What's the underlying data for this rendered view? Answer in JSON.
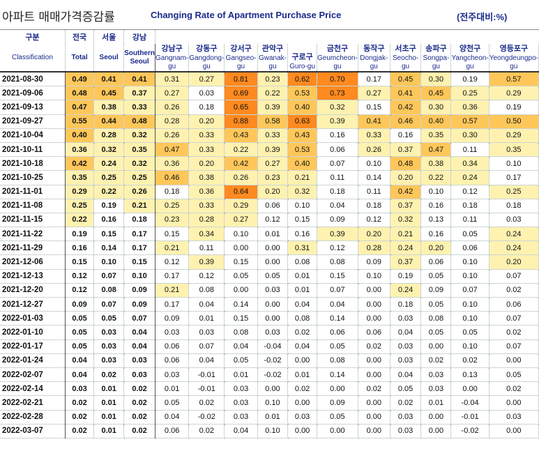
{
  "title_korean": "아파트 매매가격증감률",
  "title_english": "Changing Rate of Apartment Purchase Price",
  "unit": "(전주대비:%)",
  "header": {
    "classification_ko": "구분",
    "classification_en": "Classification",
    "columns": [
      {
        "ko": "전국",
        "en": "Total"
      },
      {
        "ko": "서울",
        "en": "Seoul"
      },
      {
        "ko": "강남",
        "en": "Southern Seoul"
      },
      {
        "ko": "강남구",
        "en": "Gangnam-gu"
      },
      {
        "ko": "강동구",
        "en": "Gangdong-gu"
      },
      {
        "ko": "강서구",
        "en": "Gangseo-gu"
      },
      {
        "ko": "관악구",
        "en": "Gwanak-gu"
      },
      {
        "ko": "구로구",
        "en": "Guro-gu"
      },
      {
        "ko": "금천구",
        "en": "Geumcheon-gu"
      },
      {
        "ko": "동작구",
        "en": "Dongjak-gu"
      },
      {
        "ko": "서초구",
        "en": "Seocho-gu"
      },
      {
        "ko": "송파구",
        "en": "Songpa-gu"
      },
      {
        "ko": "양천구",
        "en": "Yangcheon-gu"
      },
      {
        "ko": "영등포구",
        "en": "Yeongdeungpo-gu"
      }
    ]
  },
  "colors": {
    "header_text": "#1a2a8a",
    "heat_low": "#fff2b0",
    "heat_mid": "#ffc75a",
    "heat_high": "#ff8a1f"
  },
  "chart_data": {
    "type": "table",
    "title": "Changing Rate of Apartment Purchase Price",
    "unit": "(전주대비:%)",
    "columns": [
      "Total",
      "Seoul",
      "Southern Seoul",
      "Gangnam-gu",
      "Gangdong-gu",
      "Gangseo-gu",
      "Gwanak-gu",
      "Guro-gu",
      "Geumcheon-gu",
      "Dongjak-gu",
      "Seocho-gu",
      "Songpa-gu",
      "Yangcheon-gu",
      "Yeongdeungpo-gu"
    ],
    "rows": [
      {
        "date": "2021-08-30",
        "values": [
          "0.49",
          "0.41",
          "0.41",
          "0.31",
          "0.27",
          "0.81",
          "0.23",
          "0.62",
          "0.70",
          "0.17",
          "0.45",
          "0.30",
          "0.19",
          "0.57"
        ]
      },
      {
        "date": "2021-09-06",
        "values": [
          "0.48",
          "0.45",
          "0.37",
          "0.27",
          "0.03",
          "0.69",
          "0.22",
          "0.53",
          "0.73",
          "0.27",
          "0.41",
          "0.45",
          "0.25",
          "0.29"
        ]
      },
      {
        "date": "2021-09-13",
        "values": [
          "0.47",
          "0.38",
          "0.33",
          "0.26",
          "0.18",
          "0.65",
          "0.39",
          "0.40",
          "0.32",
          "0.15",
          "0.42",
          "0.30",
          "0.36",
          "0.19"
        ]
      },
      {
        "date": "2021-09-27",
        "values": [
          "0.55",
          "0.44",
          "0.48",
          "0.28",
          "0.20",
          "0.88",
          "0.58",
          "0.63",
          "0.39",
          "0.41",
          "0.46",
          "0.40",
          "0.57",
          "0.50"
        ]
      },
      {
        "date": "2021-10-04",
        "values": [
          "0.40",
          "0.28",
          "0.32",
          "0.26",
          "0.33",
          "0.43",
          "0.33",
          "0.43",
          "0.16",
          "0.33",
          "0.16",
          "0.35",
          "0.30",
          "0.29"
        ]
      },
      {
        "date": "2021-10-11",
        "values": [
          "0.36",
          "0.32",
          "0.35",
          "0.47",
          "0.33",
          "0.22",
          "0.39",
          "0.53",
          "0.06",
          "0.26",
          "0.37",
          "0.47",
          "0.11",
          "0.35"
        ]
      },
      {
        "date": "2021-10-18",
        "values": [
          "0.42",
          "0.24",
          "0.32",
          "0.36",
          "0.20",
          "0.42",
          "0.27",
          "0.40",
          "0.07",
          "0.10",
          "0.48",
          "0.38",
          "0.34",
          "0.10"
        ]
      },
      {
        "date": "2021-10-25",
        "values": [
          "0.35",
          "0.25",
          "0.25",
          "0.46",
          "0.38",
          "0.26",
          "0.23",
          "0.21",
          "0.11",
          "0.14",
          "0.20",
          "0.22",
          "0.24",
          "0.17"
        ]
      },
      {
        "date": "2021-11-01",
        "values": [
          "0.29",
          "0.22",
          "0.26",
          "0.18",
          "0.36",
          "0.64",
          "0.20",
          "0.32",
          "0.18",
          "0.11",
          "0.42",
          "0.10",
          "0.12",
          "0.25"
        ]
      },
      {
        "date": "2021-11-08",
        "values": [
          "0.25",
          "0.19",
          "0.21",
          "0.25",
          "0.33",
          "0.29",
          "0.06",
          "0.10",
          "0.04",
          "0.18",
          "0.37",
          "0.16",
          "0.18",
          "0.18"
        ]
      },
      {
        "date": "2021-11-15",
        "values": [
          "0.22",
          "0.16",
          "0.18",
          "0.23",
          "0.28",
          "0.27",
          "0.12",
          "0.15",
          "0.09",
          "0.12",
          "0.32",
          "0.13",
          "0.11",
          "0.03"
        ]
      },
      {
        "date": "2021-11-22",
        "values": [
          "0.19",
          "0.15",
          "0.17",
          "0.15",
          "0.34",
          "0.10",
          "0.01",
          "0.16",
          "0.39",
          "0.20",
          "0.21",
          "0.16",
          "0.05",
          "0.24"
        ]
      },
      {
        "date": "2021-11-29",
        "values": [
          "0.16",
          "0.14",
          "0.17",
          "0.21",
          "0.11",
          "0.00",
          "0.00",
          "0.31",
          "0.12",
          "0.28",
          "0.24",
          "0.20",
          "0.06",
          "0.24"
        ]
      },
      {
        "date": "2021-12-06",
        "values": [
          "0.15",
          "0.10",
          "0.15",
          "0.12",
          "0.39",
          "0.15",
          "0.00",
          "0.08",
          "0.08",
          "0.09",
          "0.37",
          "0.06",
          "0.10",
          "0.20"
        ]
      },
      {
        "date": "2021-12-13",
        "values": [
          "0.12",
          "0.07",
          "0.10",
          "0.17",
          "0.12",
          "0.05",
          "0.05",
          "0.01",
          "0.15",
          "0.10",
          "0.19",
          "0.05",
          "0.10",
          "0.07"
        ]
      },
      {
        "date": "2021-12-20",
        "values": [
          "0.12",
          "0.08",
          "0.09",
          "0.21",
          "0.08",
          "0.00",
          "0.03",
          "0.01",
          "0.07",
          "0.00",
          "0.24",
          "0.09",
          "0.07",
          "0.02"
        ]
      },
      {
        "date": "2021-12-27",
        "values": [
          "0.09",
          "0.07",
          "0.09",
          "0.17",
          "0.04",
          "0.14",
          "0.00",
          "0.04",
          "0.04",
          "0.00",
          "0.18",
          "0.05",
          "0.10",
          "0.06"
        ]
      },
      {
        "date": "2022-01-03",
        "values": [
          "0.05",
          "0.05",
          "0.07",
          "0.09",
          "0.01",
          "0.15",
          "0.00",
          "0.08",
          "0.14",
          "0.00",
          "0.03",
          "0.08",
          "0.10",
          "0.07"
        ]
      },
      {
        "date": "2022-01-10",
        "values": [
          "0.05",
          "0.03",
          "0.04",
          "0.03",
          "0.03",
          "0.08",
          "0.03",
          "0.02",
          "0.06",
          "0.06",
          "0.04",
          "0.05",
          "0.05",
          "0.02"
        ]
      },
      {
        "date": "2022-01-17",
        "values": [
          "0.05",
          "0.03",
          "0.04",
          "0.06",
          "0.07",
          "0.04",
          "-0.04",
          "0.04",
          "0.05",
          "0.02",
          "0.03",
          "0.00",
          "0.10",
          "0.07"
        ]
      },
      {
        "date": "2022-01-24",
        "values": [
          "0.04",
          "0.03",
          "0.03",
          "0.06",
          "0.04",
          "0.05",
          "-0.02",
          "0.00",
          "0.08",
          "0.00",
          "0.03",
          "0.02",
          "0.02",
          "0.00"
        ]
      },
      {
        "date": "2022-02-07",
        "values": [
          "0.04",
          "0.02",
          "0.03",
          "0.03",
          "-0.01",
          "0.01",
          "-0.02",
          "0.01",
          "0.14",
          "0.00",
          "0.04",
          "0.03",
          "0.13",
          "0.05"
        ]
      },
      {
        "date": "2022-02-14",
        "values": [
          "0.03",
          "0.01",
          "0.02",
          "0.01",
          "-0.01",
          "0.03",
          "0.00",
          "0.02",
          "0.00",
          "0.02",
          "0.05",
          "0.03",
          "0.00",
          "0.02"
        ]
      },
      {
        "date": "2022-02-21",
        "values": [
          "0.02",
          "0.01",
          "0.02",
          "0.05",
          "0.02",
          "0.03",
          "0.10",
          "0.00",
          "0.09",
          "0.00",
          "0.02",
          "0.01",
          "-0.04",
          "0.00"
        ]
      },
      {
        "date": "2022-02-28",
        "values": [
          "0.02",
          "0.01",
          "0.02",
          "0.04",
          "-0.02",
          "0.03",
          "0.01",
          "0.03",
          "0.05",
          "0.00",
          "0.03",
          "0.00",
          "-0.01",
          "0.03"
        ]
      },
      {
        "date": "2022-03-07",
        "values": [
          "0.02",
          "0.01",
          "0.02",
          "0.06",
          "0.02",
          "0.04",
          "0.10",
          "0.00",
          "0.00",
          "0.00",
          "0.03",
          "0.00",
          "-0.02",
          "0.00"
        ]
      }
    ]
  }
}
